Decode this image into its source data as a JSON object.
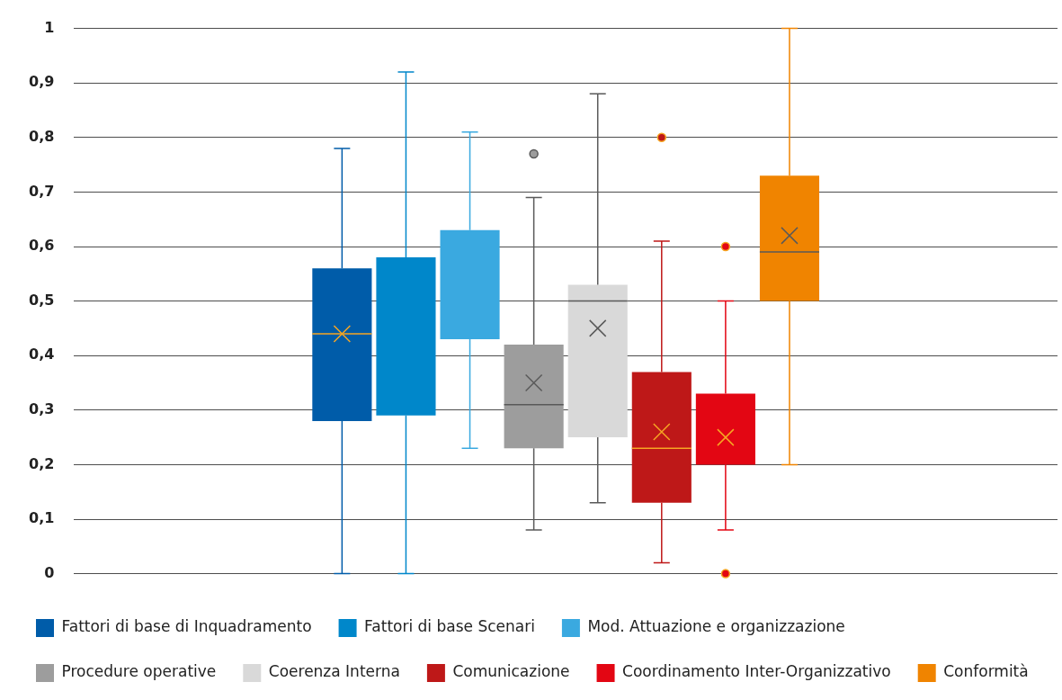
{
  "chart_data": {
    "type": "box",
    "categories": [
      null
    ],
    "series": [
      {
        "name": "Fattori di base di Inquadramento",
        "color": "#005ca9",
        "boxes": [
          {
            "low": 0,
            "q1": 0.28,
            "median": 0.44,
            "q3": 0.56,
            "high": 0.78,
            "mean": 0.44
          }
        ]
      },
      {
        "name": "Fattori di base Scenari",
        "color": "#0087ca",
        "boxes": [
          {
            "low": 0,
            "q1": 0.29,
            "q3": 0.58,
            "high": 0.92
          }
        ]
      },
      {
        "name": "Mod. Attuazione e organizzazione",
        "color": "#3aa9e0",
        "boxes": [
          {
            "low": 0.23,
            "q1": 0.43,
            "q3": 0.63,
            "high": 0.81
          }
        ]
      },
      {
        "name": "Procedure operative",
        "color": "#9d9d9d",
        "boxes": [
          {
            "low": 0.08,
            "q1": 0.23,
            "median": 0.31,
            "q3": 0.42,
            "high": 0.69,
            "mean": 0.35,
            "outliers": [
              0.77
            ]
          }
        ]
      },
      {
        "name": "Coerenza Interna",
        "color": "#d9d9d9",
        "boxes": [
          {
            "low": 0.13,
            "q1": 0.25,
            "median": 0.5,
            "q3": 0.53,
            "high": 0.88,
            "mean": 0.45
          }
        ]
      },
      {
        "name": "Comunicazione",
        "color": "#be1818",
        "boxes": [
          {
            "low": 0.02,
            "q1": 0.13,
            "median": 0.23,
            "q3": 0.37,
            "high": 0.61,
            "mean": 0.26,
            "outliers": [
              0.8
            ]
          }
        ]
      },
      {
        "name": "Coordinamento Inter-Organizzativo",
        "color": "#e30613",
        "boxes": [
          {
            "low": 0.08,
            "q1": 0.2,
            "q3": 0.33,
            "high": 0.5,
            "mean": 0.25,
            "outliers": [
              0.6,
              0
            ]
          }
        ]
      },
      {
        "name": "Conformità",
        "color": "#f08400",
        "boxes": [
          {
            "low": 0.2,
            "q1": 0.5,
            "median": 0.59,
            "q3": 0.73,
            "high": 1,
            "mean": 0.62
          }
        ]
      }
    ],
    "ylim": [
      0,
      1
    ],
    "yticks": [
      0,
      {
        "value": 0.1,
        "label": "0,1"
      },
      {
        "value": 0.2,
        "label": "0,2"
      },
      {
        "value": 0.3,
        "label": "0,3"
      },
      {
        "value": 0.4,
        "label": "0,4"
      },
      {
        "value": 0.5,
        "label": "0,5"
      },
      {
        "value": 0.6,
        "label": "0,6"
      },
      {
        "value": 0.7,
        "label": "0,7"
      },
      {
        "value": 0.8,
        "label": "0,8"
      },
      {
        "value": 0.9,
        "label": "0,9"
      },
      1
    ],
    "grid": "y",
    "legend": "bottom"
  }
}
